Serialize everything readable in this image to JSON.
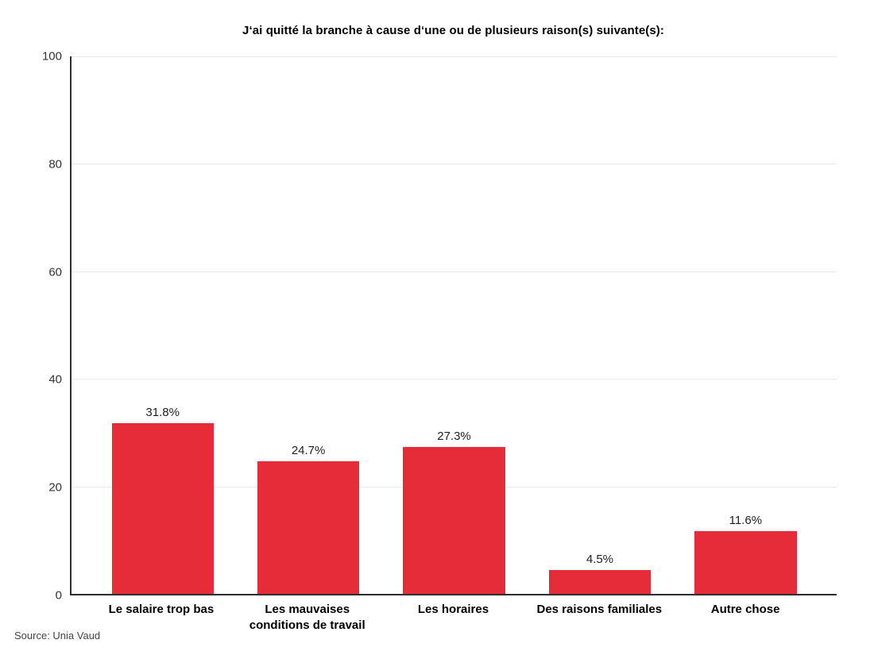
{
  "source_label": "Source: Unia Vaud",
  "colors": {
    "bar": "#e52c38",
    "axis": "#2e2e2e",
    "grid": "#e9e9e9",
    "value_label": "#1f1f1f",
    "tick_label": "#333333",
    "category_label": "#000000",
    "background": "#ffffff"
  },
  "chart_data": {
    "type": "bar",
    "title": "J‘ai quitté la branche à cause d‘une ou de plusieurs raison(s) suivante(s):",
    "categories": [
      "Le salaire trop bas",
      "Les mauvaises conditions de travail",
      "Les horaires",
      "Des raisons familiales",
      "Autre chose"
    ],
    "values": [
      31.8,
      24.7,
      27.3,
      4.5,
      11.6
    ],
    "value_labels": [
      "31.8%",
      "24.7%",
      "27.3%",
      "4.5%",
      "11.6%"
    ],
    "xlabel": "",
    "ylabel": "",
    "ylim": [
      0,
      100
    ],
    "yticks": [
      0,
      20,
      40,
      60,
      80,
      100
    ],
    "grid": "horizontal",
    "legend_position": "none"
  }
}
